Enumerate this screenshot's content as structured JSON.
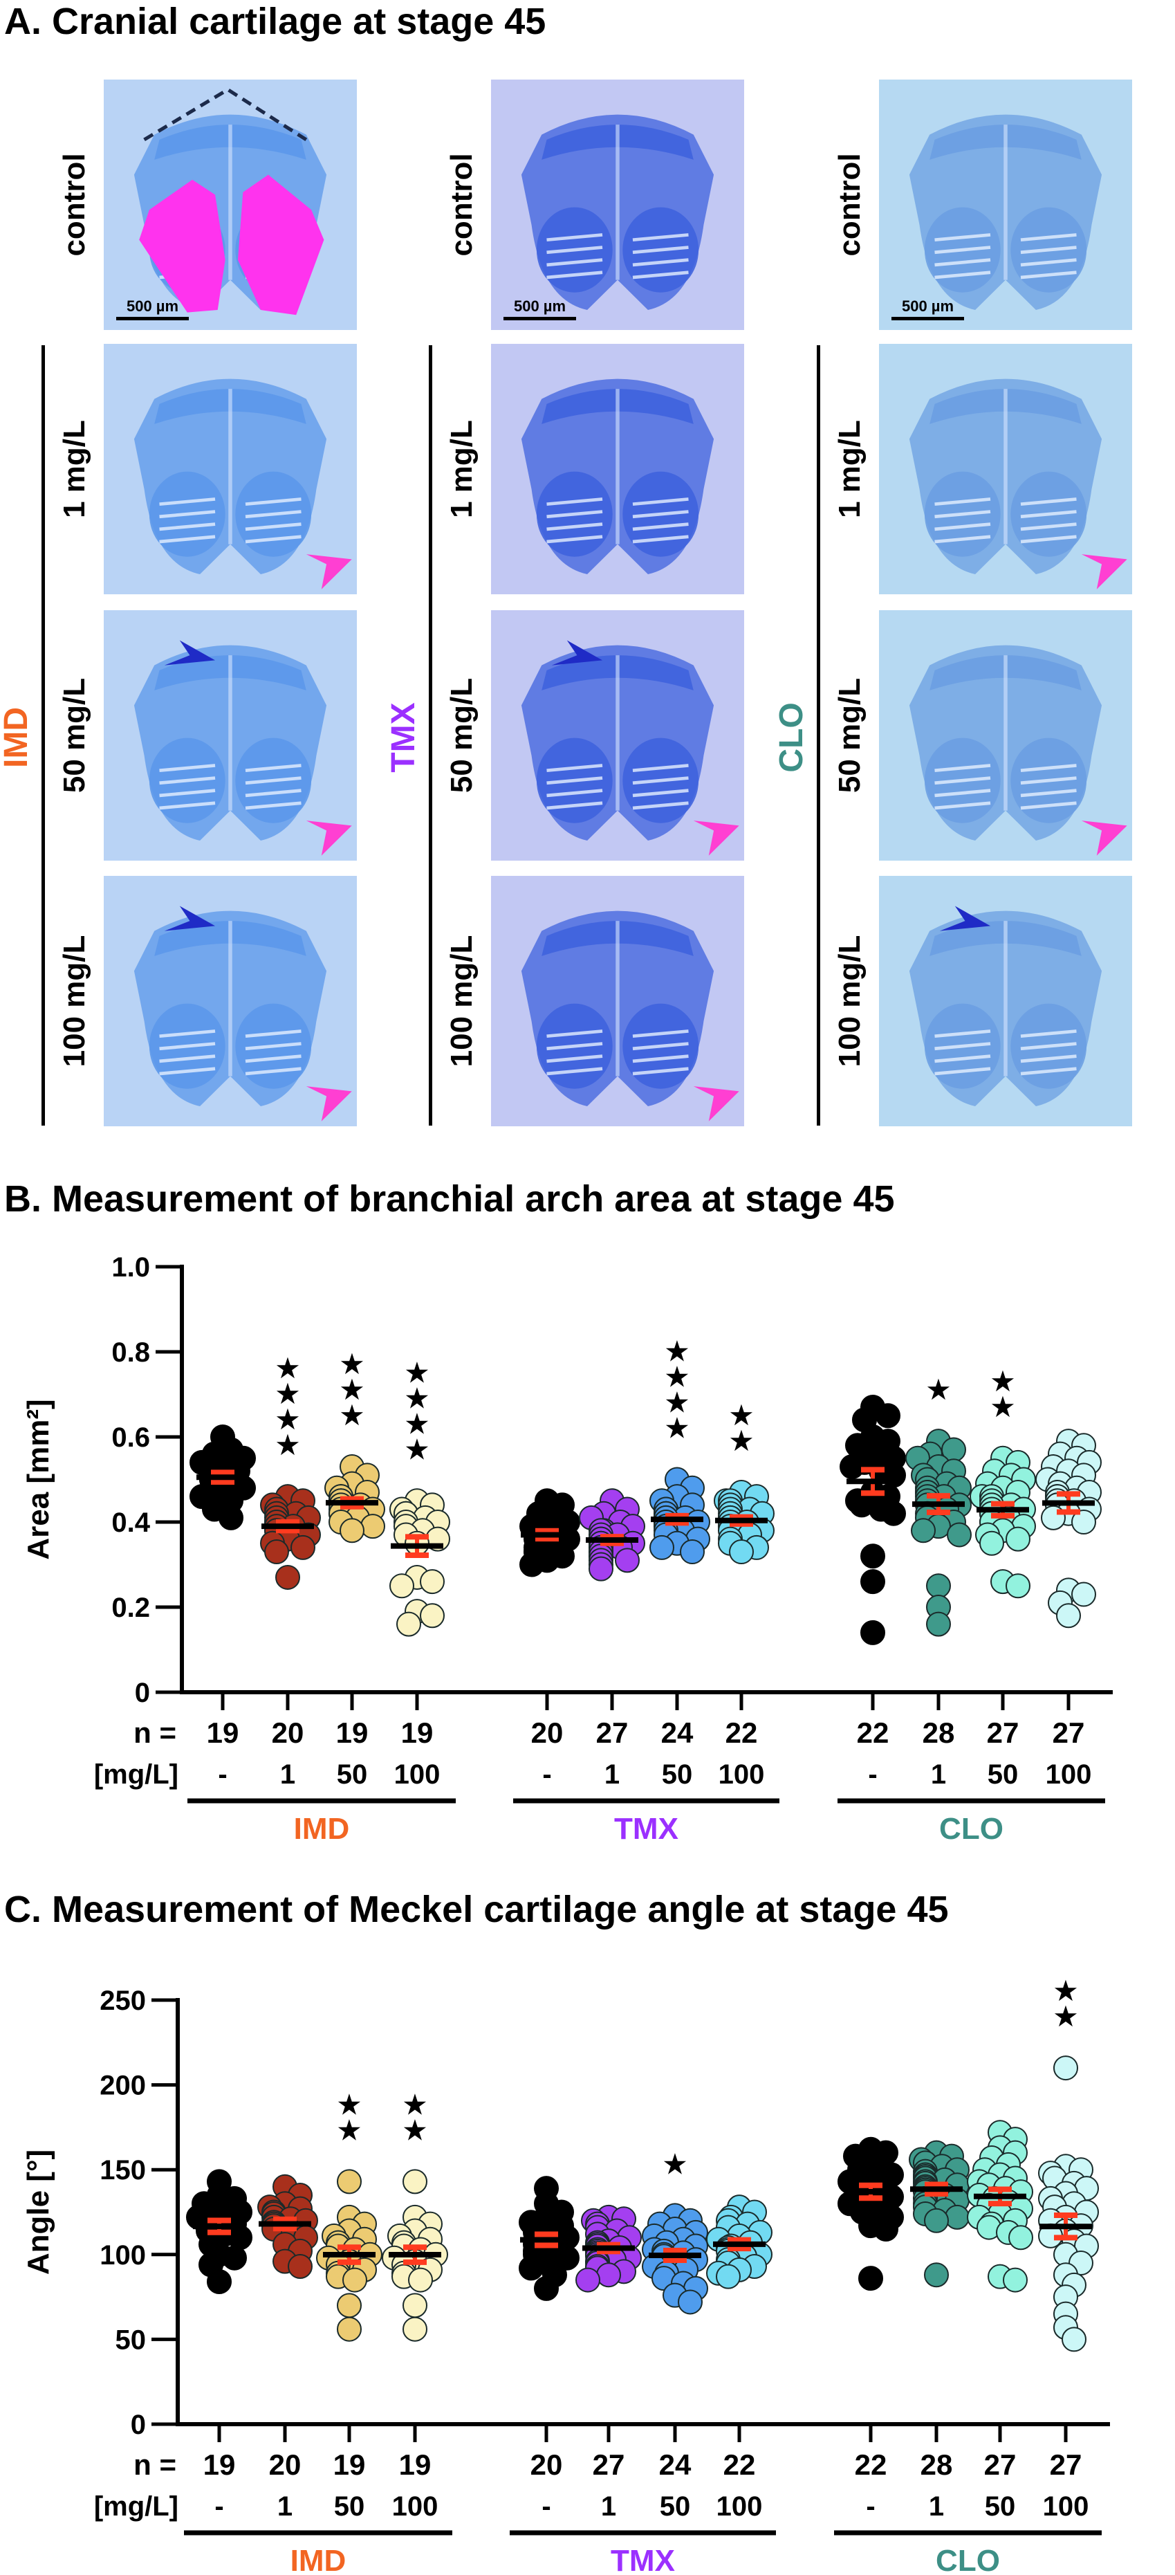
{
  "panel_a": {
    "title": "A. Cranial cartilage at stage 45",
    "scale_bar": "500 µm",
    "columns": [
      {
        "drug": "IMD",
        "color": "#f26522",
        "bg": "#b9d3f5",
        "tissue": "#5c98ea",
        "rows": [
          {
            "label": "control",
            "pink_arrow": false,
            "blue_arrow": false,
            "highlight": true
          },
          {
            "label": "1 mg/L",
            "pink_arrow": true,
            "blue_arrow": false
          },
          {
            "label": "50 mg/L",
            "pink_arrow": true,
            "blue_arrow": true
          },
          {
            "label": "100 mg/L",
            "pink_arrow": true,
            "blue_arrow": true
          }
        ]
      },
      {
        "drug": "TMX",
        "color": "#9b30ff",
        "bg": "#c2c8f3",
        "tissue": "#3f63dd",
        "rows": [
          {
            "label": "control",
            "pink_arrow": false,
            "blue_arrow": false
          },
          {
            "label": "1 mg/L",
            "pink_arrow": false,
            "blue_arrow": false
          },
          {
            "label": "50 mg/L",
            "pink_arrow": true,
            "blue_arrow": true
          },
          {
            "label": "100 mg/L",
            "pink_arrow": true,
            "blue_arrow": false
          }
        ]
      },
      {
        "drug": "CLO",
        "color": "#3d8f86",
        "bg": "#b6d9f2",
        "tissue": "#6b9fe2",
        "rows": [
          {
            "label": "control",
            "pink_arrow": false,
            "blue_arrow": false
          },
          {
            "label": "1 mg/L",
            "pink_arrow": true,
            "blue_arrow": false
          },
          {
            "label": "50 mg/L",
            "pink_arrow": true,
            "blue_arrow": false
          },
          {
            "label": "100 mg/L",
            "pink_arrow": false,
            "blue_arrow": true
          }
        ]
      }
    ],
    "arrow_colors": {
      "pink": "#ff3fd2",
      "blue": "#1f2bc6"
    },
    "highlight_color": "#ff33ee"
  },
  "panel_b": {
    "title": "B. Measurement of branchial arch area at stage 45"
  },
  "panel_c": {
    "title": "C. Measurement of Meckel cartilage angle at stage 45"
  },
  "chart_data": [
    {
      "type": "scatter",
      "ylabel": "Area [mm²]",
      "ylim": [
        0,
        1.0
      ],
      "yticks": [
        "0",
        "0.2",
        "0.4",
        "0.6",
        "0.8",
        "1.0"
      ],
      "row_labels": {
        "n": "n =",
        "conc": "[mg/L]"
      },
      "mean_color": "#000000",
      "sem_color": "#ff3b1f",
      "groups": [
        {
          "name": "IMD",
          "color": "#f26522",
          "categories": [
            {
              "conc": "-",
              "n": "19",
              "fill": "#000000",
              "stars": 0,
              "values": [
                0.6,
                0.57,
                0.56,
                0.55,
                0.54,
                0.53,
                0.52,
                0.52,
                0.51,
                0.51,
                0.5,
                0.5,
                0.49,
                0.48,
                0.47,
                0.46,
                0.45,
                0.43,
                0.41
              ]
            },
            {
              "conc": "1",
              "n": "20",
              "fill": "#a8301c",
              "stars": 4,
              "values": [
                0.46,
                0.45,
                0.44,
                0.43,
                0.42,
                0.42,
                0.41,
                0.41,
                0.4,
                0.4,
                0.39,
                0.39,
                0.38,
                0.38,
                0.37,
                0.36,
                0.35,
                0.34,
                0.33,
                0.27
              ]
            },
            {
              "conc": "50",
              "n": "19",
              "fill": "#eccb72",
              "stars": 3,
              "values": [
                0.53,
                0.51,
                0.49,
                0.48,
                0.47,
                0.46,
                0.46,
                0.45,
                0.45,
                0.44,
                0.44,
                0.43,
                0.43,
                0.42,
                0.42,
                0.41,
                0.4,
                0.39,
                0.38
              ]
            },
            {
              "conc": "100",
              "n": "19",
              "fill": "#faf3c4",
              "stars": 4,
              "values": [
                0.45,
                0.44,
                0.43,
                0.42,
                0.42,
                0.41,
                0.4,
                0.4,
                0.39,
                0.38,
                0.37,
                0.36,
                0.35,
                0.27,
                0.26,
                0.25,
                0.19,
                0.18,
                0.16
              ]
            }
          ]
        },
        {
          "name": "TMX",
          "color": "#9b30ff",
          "categories": [
            {
              "conc": "-",
              "n": "20",
              "fill": "#000000",
              "stars": 0,
              "values": [
                0.45,
                0.44,
                0.42,
                0.41,
                0.4,
                0.39,
                0.39,
                0.38,
                0.38,
                0.37,
                0.37,
                0.36,
                0.36,
                0.35,
                0.34,
                0.33,
                0.33,
                0.32,
                0.31,
                0.3
              ]
            },
            {
              "conc": "1",
              "n": "27",
              "fill": "#a43ff0",
              "stars": 0,
              "values": [
                0.45,
                0.43,
                0.42,
                0.41,
                0.4,
                0.39,
                0.38,
                0.38,
                0.37,
                0.37,
                0.36,
                0.36,
                0.36,
                0.35,
                0.35,
                0.35,
                0.34,
                0.34,
                0.34,
                0.33,
                0.33,
                0.32,
                0.32,
                0.31,
                0.31,
                0.3,
                0.29
              ]
            },
            {
              "conc": "50",
              "n": "24",
              "fill": "#4f9ced",
              "stars": 4,
              "values": [
                0.5,
                0.48,
                0.46,
                0.45,
                0.44,
                0.43,
                0.43,
                0.42,
                0.42,
                0.41,
                0.41,
                0.41,
                0.4,
                0.4,
                0.4,
                0.39,
                0.39,
                0.38,
                0.38,
                0.37,
                0.36,
                0.35,
                0.34,
                0.33
              ]
            },
            {
              "conc": "100",
              "n": "22",
              "fill": "#72daf2",
              "stars": 2,
              "values": [
                0.47,
                0.46,
                0.45,
                0.45,
                0.44,
                0.43,
                0.43,
                0.42,
                0.42,
                0.41,
                0.41,
                0.4,
                0.4,
                0.39,
                0.39,
                0.38,
                0.38,
                0.37,
                0.36,
                0.35,
                0.34,
                0.33
              ]
            }
          ]
        },
        {
          "name": "CLO",
          "color": "#3d8f86",
          "categories": [
            {
              "conc": "-",
              "n": "22",
              "fill": "#000000",
              "stars": 0,
              "values": [
                0.67,
                0.65,
                0.64,
                0.6,
                0.59,
                0.58,
                0.57,
                0.56,
                0.55,
                0.54,
                0.53,
                0.52,
                0.51,
                0.47,
                0.46,
                0.45,
                0.44,
                0.43,
                0.42,
                0.32,
                0.26,
                0.14
              ]
            },
            {
              "conc": "1",
              "n": "28",
              "fill": "#3f9a8b",
              "stars": 1,
              "values": [
                0.59,
                0.57,
                0.56,
                0.55,
                0.53,
                0.52,
                0.51,
                0.5,
                0.49,
                0.48,
                0.48,
                0.47,
                0.47,
                0.46,
                0.46,
                0.45,
                0.44,
                0.44,
                0.43,
                0.42,
                0.41,
                0.4,
                0.39,
                0.38,
                0.37,
                0.25,
                0.2,
                0.16
              ]
            },
            {
              "conc": "50",
              "n": "27",
              "fill": "#92f2de",
              "stars": 2,
              "values": [
                0.55,
                0.54,
                0.52,
                0.51,
                0.5,
                0.49,
                0.48,
                0.47,
                0.46,
                0.46,
                0.45,
                0.44,
                0.44,
                0.43,
                0.43,
                0.42,
                0.42,
                0.41,
                0.4,
                0.4,
                0.39,
                0.38,
                0.37,
                0.36,
                0.35,
                0.26,
                0.25
              ]
            },
            {
              "conc": "100",
              "n": "27",
              "fill": "#ccf7f7",
              "stars": 0,
              "values": [
                0.59,
                0.58,
                0.56,
                0.55,
                0.54,
                0.53,
                0.52,
                0.51,
                0.5,
                0.49,
                0.48,
                0.47,
                0.47,
                0.46,
                0.46,
                0.45,
                0.45,
                0.44,
                0.44,
                0.43,
                0.42,
                0.41,
                0.4,
                0.24,
                0.23,
                0.21,
                0.18
              ]
            }
          ]
        }
      ]
    },
    {
      "type": "scatter",
      "ylabel": "Angle [°]",
      "ylim": [
        0,
        250
      ],
      "yticks": [
        "0",
        "50",
        "100",
        "150",
        "200",
        "250"
      ],
      "row_labels": {
        "n": "n =",
        "conc": "[mg/L]"
      },
      "mean_color": "#000000",
      "sem_color": "#ff3b1f",
      "groups": [
        {
          "name": "IMD",
          "color": "#f26522",
          "categories": [
            {
              "conc": "-",
              "n": "19",
              "fill": "#000000",
              "stars": 0,
              "values": [
                143,
                135,
                133,
                130,
                128,
                127,
                125,
                122,
                120,
                118,
                116,
                114,
                112,
                110,
                106,
                100,
                98,
                94,
                84
              ]
            },
            {
              "conc": "1",
              "n": "20",
              "fill": "#a8301c",
              "stars": 0,
              "values": [
                140,
                135,
                130,
                128,
                127,
                125,
                124,
                122,
                121,
                120,
                119,
                118,
                117,
                115,
                113,
                110,
                106,
                102,
                96,
                93
              ]
            },
            {
              "conc": "50",
              "n": "19",
              "fill": "#eccb72",
              "stars": 2,
              "values": [
                143,
                122,
                118,
                114,
                111,
                109,
                107,
                105,
                103,
                100,
                98,
                96,
                94,
                91,
                89,
                87,
                85,
                70,
                56
              ]
            },
            {
              "conc": "100",
              "n": "19",
              "fill": "#faf3c4",
              "stars": 2,
              "values": [
                143,
                122,
                118,
                114,
                111,
                109,
                107,
                105,
                103,
                100,
                98,
                96,
                94,
                91,
                89,
                87,
                85,
                70,
                56
              ]
            }
          ]
        },
        {
          "name": "TMX",
          "color": "#9b30ff",
          "categories": [
            {
              "conc": "-",
              "n": "20",
              "fill": "#000000",
              "stars": 0,
              "values": [
                139,
                130,
                125,
                122,
                119,
                117,
                115,
                113,
                111,
                110,
                108,
                106,
                104,
                102,
                100,
                98,
                95,
                92,
                88,
                80
              ]
            },
            {
              "conc": "1",
              "n": "27",
              "fill": "#a43ff0",
              "stars": 0,
              "values": [
                122,
                121,
                120,
                118,
                116,
                114,
                112,
                110,
                108,
                107,
                106,
                105,
                104,
                103,
                102,
                101,
                100,
                99,
                98,
                97,
                96,
                95,
                93,
                92,
                90,
                88,
                85
              ]
            },
            {
              "conc": "50",
              "n": "24",
              "fill": "#4f9ced",
              "stars": 1,
              "values": [
                123,
                120,
                118,
                115,
                113,
                111,
                109,
                107,
                105,
                103,
                102,
                101,
                100,
                99,
                97,
                95,
                93,
                91,
                89,
                86,
                83,
                80,
                76,
                72
              ]
            },
            {
              "conc": "100",
              "n": "22",
              "fill": "#72daf2",
              "stars": 0,
              "values": [
                128,
                125,
                122,
                120,
                118,
                116,
                113,
                111,
                109,
                107,
                105,
                104,
                103,
                102,
                100,
                99,
                97,
                95,
                93,
                91,
                89,
                87
              ]
            }
          ]
        },
        {
          "name": "CLO",
          "color": "#3d8f86",
          "categories": [
            {
              "conc": "-",
              "n": "22",
              "fill": "#000000",
              "stars": 0,
              "values": [
                162,
                160,
                158,
                155,
                152,
                150,
                147,
                145,
                143,
                141,
                139,
                138,
                136,
                134,
                132,
                130,
                128,
                125,
                122,
                117,
                115,
                86
              ]
            },
            {
              "conc": "1",
              "n": "28",
              "fill": "#3f9a8b",
              "stars": 0,
              "values": [
                160,
                158,
                156,
                154,
                152,
                150,
                149,
                147,
                146,
                145,
                144,
                143,
                142,
                141,
                140,
                139,
                138,
                137,
                135,
                133,
                132,
                130,
                128,
                126,
                124,
                122,
                120,
                88
              ]
            },
            {
              "conc": "50",
              "n": "27",
              "fill": "#92f2de",
              "stars": 0,
              "values": [
                172,
                168,
                163,
                160,
                157,
                153,
                150,
                147,
                145,
                143,
                141,
                139,
                137,
                135,
                133,
                131,
                129,
                127,
                124,
                122,
                120,
                118,
                116,
                113,
                110,
                87,
                85
              ]
            },
            {
              "conc": "100",
              "n": "27",
              "fill": "#ccf7f7",
              "stars": 2,
              "values": [
                210,
                152,
                150,
                148,
                145,
                142,
                139,
                136,
                133,
                130,
                128,
                125,
                122,
                120,
                117,
                114,
                111,
                108,
                105,
                100,
                95,
                88,
                82,
                75,
                65,
                57,
                50
              ]
            }
          ]
        }
      ]
    }
  ]
}
